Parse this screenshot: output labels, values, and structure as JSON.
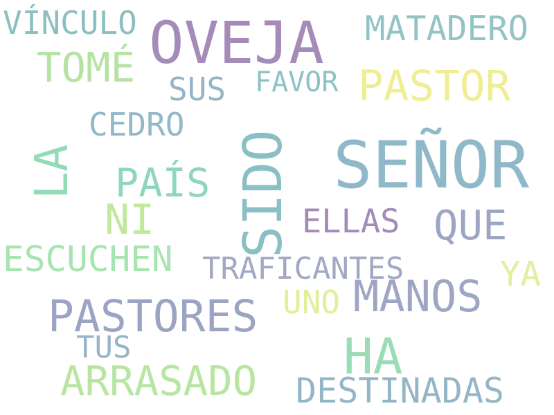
{
  "words": [
    {
      "text": "VÍNCULO",
      "color": "#8dbfc0"
    },
    {
      "text": "OVEJA",
      "color": "#a58bb8"
    },
    {
      "text": "MATADERO",
      "color": "#93c4c4"
    },
    {
      "text": "TOMÉ",
      "color": "#b6e3a4"
    },
    {
      "text": "SUS",
      "color": "#96b4c8"
    },
    {
      "text": "FAVOR",
      "color": "#8ec3c6"
    },
    {
      "text": "PASTOR",
      "color": "#f0ee92"
    },
    {
      "text": "CEDRO",
      "color": "#93b8c8"
    },
    {
      "text": "LA",
      "color": "#93dbb6"
    },
    {
      "text": "SIDO",
      "color": "#8abfc4"
    },
    {
      "text": "SEÑOR",
      "color": "#8fb9c9"
    },
    {
      "text": "PAÍS",
      "color": "#8fd6bd"
    },
    {
      "text": "NI",
      "color": "#c2e89d"
    },
    {
      "text": "ELLAS",
      "color": "#a38bb6"
    },
    {
      "text": "QUE",
      "color": "#9ca6c4"
    },
    {
      "text": "ESCUCHEN",
      "color": "#a6e4b0"
    },
    {
      "text": "TRAFICANTES",
      "color": "#a2a8c4"
    },
    {
      "text": "YA",
      "color": "#e2eea0"
    },
    {
      "text": "UNO",
      "color": "#e2ee9a"
    },
    {
      "text": "MANOS",
      "color": "#9ea6c4"
    },
    {
      "text": "PASTORES",
      "color": "#9ca4c3"
    },
    {
      "text": "TUS",
      "color": "#97b4c8"
    },
    {
      "text": "HA",
      "color": "#9adcb5"
    },
    {
      "text": "ARRASADO",
      "color": "#b8e6a2"
    },
    {
      "text": "DESTINADAS",
      "color": "#93b6c6"
    }
  ]
}
